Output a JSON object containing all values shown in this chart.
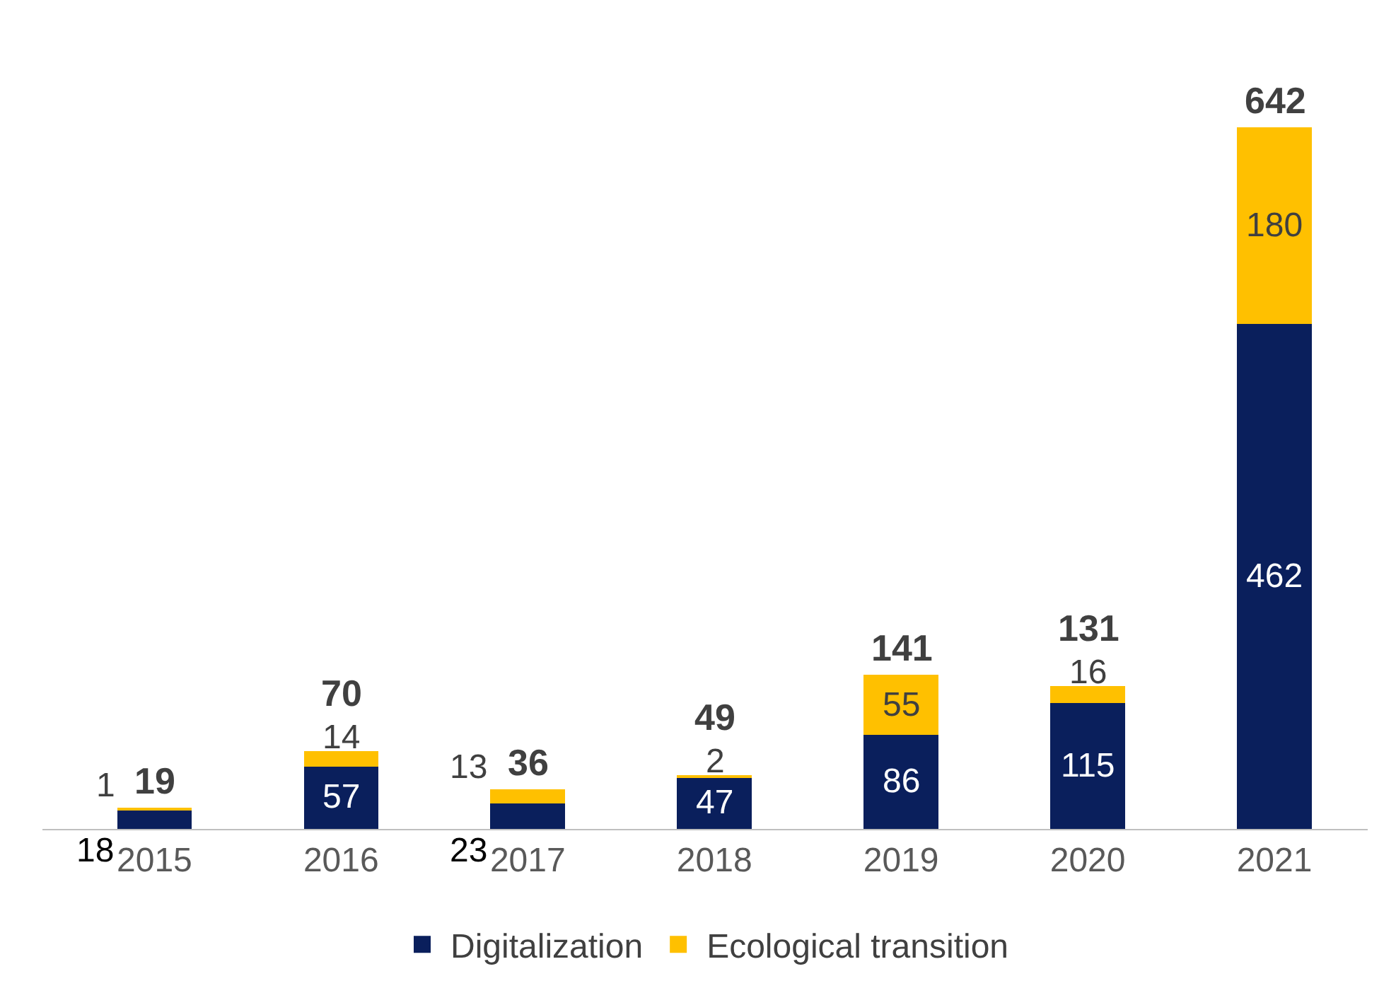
{
  "chart_data": {
    "type": "bar",
    "stacked": true,
    "categories": [
      "2015",
      "2016",
      "2017",
      "2018",
      "2019",
      "2020",
      "2021"
    ],
    "series": [
      {
        "name": "Digitalization",
        "color": "#0a1f5c",
        "values": [
          18,
          57,
          23,
          47,
          86,
          115,
          462
        ]
      },
      {
        "name": "Ecological transition",
        "color": "#ffc000",
        "values": [
          1,
          14,
          13,
          2,
          55,
          16,
          180
        ]
      }
    ],
    "data_labels": true,
    "totals": [
      "19",
      "70",
      "36",
      "49",
      "141",
      "131",
      "642"
    ],
    "legend": "bottom"
  }
}
